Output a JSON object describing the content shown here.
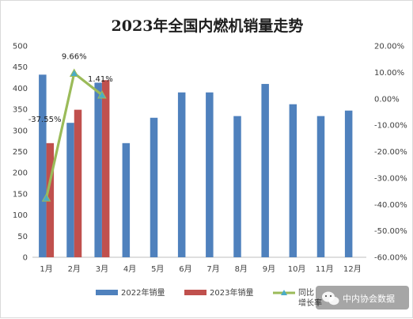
{
  "chart_data": {
    "type": "bar",
    "title": "2023年全国内燃机销量走势",
    "categories": [
      "1月",
      "2月",
      "3月",
      "4月",
      "5月",
      "6月",
      "7月",
      "8月",
      "9月",
      "10月",
      "11月",
      "12月"
    ],
    "series": [
      {
        "name": "2022年销量",
        "kind": "bar",
        "axis": "left",
        "color": "#4f81bd",
        "values": [
          432,
          318,
          413,
          270,
          330,
          390,
          390,
          334,
          410,
          362,
          334,
          347
        ]
      },
      {
        "name": "2023年销量",
        "kind": "bar",
        "axis": "left",
        "color": "#c0504d",
        "values": [
          270,
          349,
          419,
          null,
          null,
          null,
          null,
          null,
          null,
          null,
          null,
          null
        ]
      },
      {
        "name": "同比\n增长率",
        "kind": "line",
        "axis": "right",
        "color": "#9bbb59",
        "marker_color": "#4bacc6",
        "values": [
          -37.55,
          9.66,
          1.41,
          null,
          null,
          null,
          null,
          null,
          null,
          null,
          null,
          null
        ],
        "labels": [
          "-37.55%",
          "9.66%",
          "1.41%"
        ]
      }
    ],
    "y_left": {
      "min": 0,
      "max": 500,
      "step": 50,
      "ticks": [
        "0",
        "50",
        "100",
        "150",
        "200",
        "250",
        "300",
        "350",
        "400",
        "450",
        "500"
      ]
    },
    "y_right": {
      "min": -60,
      "max": 20,
      "step": 10,
      "ticks": [
        "-60.00%",
        "-50.00%",
        "-40.00%",
        "-30.00%",
        "-20.00%",
        "-10.00%",
        "0.00%",
        "10.00%",
        "20.00%"
      ]
    },
    "grid": false,
    "legend_position": "bottom"
  },
  "watermark": {
    "text": "中内协会数据",
    "icon": "wechat-icon"
  }
}
